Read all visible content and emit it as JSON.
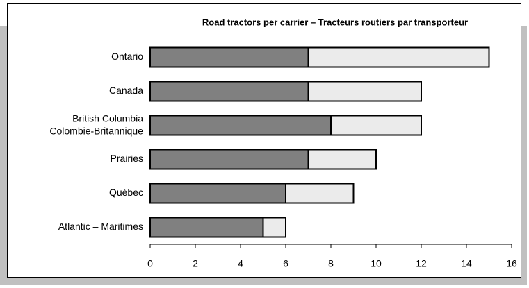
{
  "chart_data": {
    "type": "stacked_bar_horizontal",
    "title": "Road tractors per carrier – Tracteurs routiers par transporteur",
    "categories": [
      "Ontario",
      "Canada",
      "British Columbia\nColombie-Britannique",
      "Prairies",
      "Québec",
      "Atlantic – Maritimes"
    ],
    "series": [
      {
        "color": "#808080",
        "values": [
          7,
          7,
          8,
          7,
          6,
          5
        ]
      },
      {
        "color": "#ebebeb",
        "values": [
          8,
          5,
          4,
          3,
          3,
          1
        ]
      }
    ],
    "xlim": [
      0,
      16
    ],
    "xticks": [
      0,
      2,
      4,
      6,
      8,
      10,
      12,
      14,
      16
    ],
    "grid": false
  }
}
